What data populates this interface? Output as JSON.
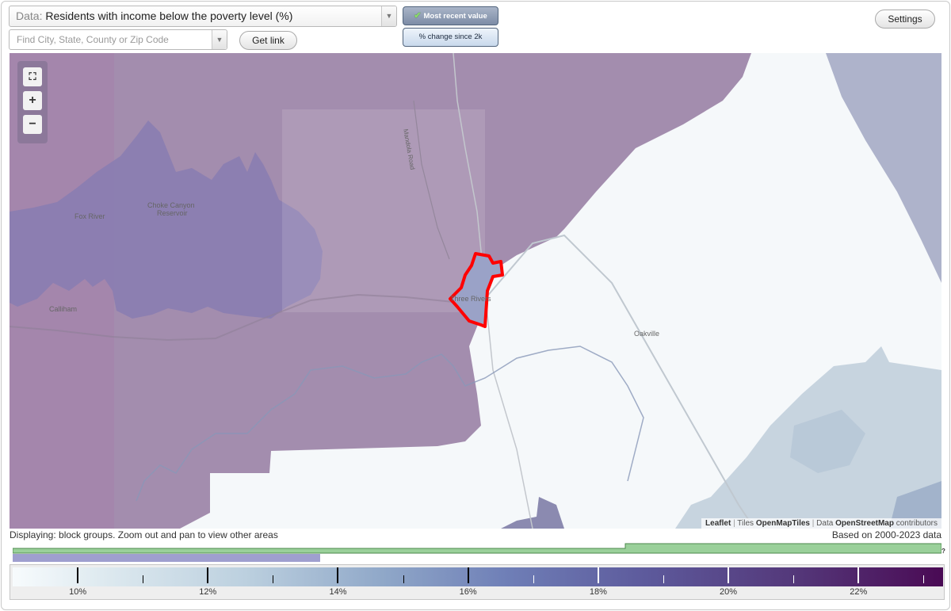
{
  "controls": {
    "data_select_label": "Data:",
    "data_select_value": "Residents with income below the poverty level (%)",
    "search_placeholder": "Find City, State, County or Zip Code",
    "get_link": "Get link",
    "settings": "Settings",
    "mode_active": "Most recent value",
    "mode_inactive": "% change since 2k",
    "dropdown_arrow": "▼"
  },
  "map": {
    "zoom_full_icon": "fullscreen-icon",
    "zoom_in": "+",
    "zoom_out": "−",
    "places": {
      "fox_river": "Fox River",
      "choke_canyon": "Choke Canyon",
      "reservoir": "Reservoir",
      "calliham": "Calliham",
      "three_rivers": "Three Rivers",
      "oakville": "Oakville",
      "mandola_road": "Mandola Road"
    },
    "attribution": {
      "leaflet": "Leaflet",
      "tiles_prefix": "Tiles",
      "tiles": "OpenMapTiles",
      "data_prefix": "Data",
      "data": "OpenStreetMap",
      "contributors": "contributors"
    },
    "colors": {
      "highlight": "#ff0000",
      "high_poverty": "#a38dae",
      "low_poverty": "#f5f8fa"
    }
  },
  "footer": {
    "display_note": "Displaying: block groups. Zoom out and pan to view other areas",
    "data_range": "Based on 2000-2023 data",
    "help_mark": "?"
  },
  "legend": {
    "labels": [
      "10%",
      "12%",
      "14%",
      "16%",
      "18%",
      "20%",
      "22%"
    ],
    "min": 9,
    "max": 23.3,
    "colors": [
      "#f7fbfd",
      "#bcd0df",
      "#6f7fb7",
      "#54387a",
      "#4a0a54"
    ]
  }
}
